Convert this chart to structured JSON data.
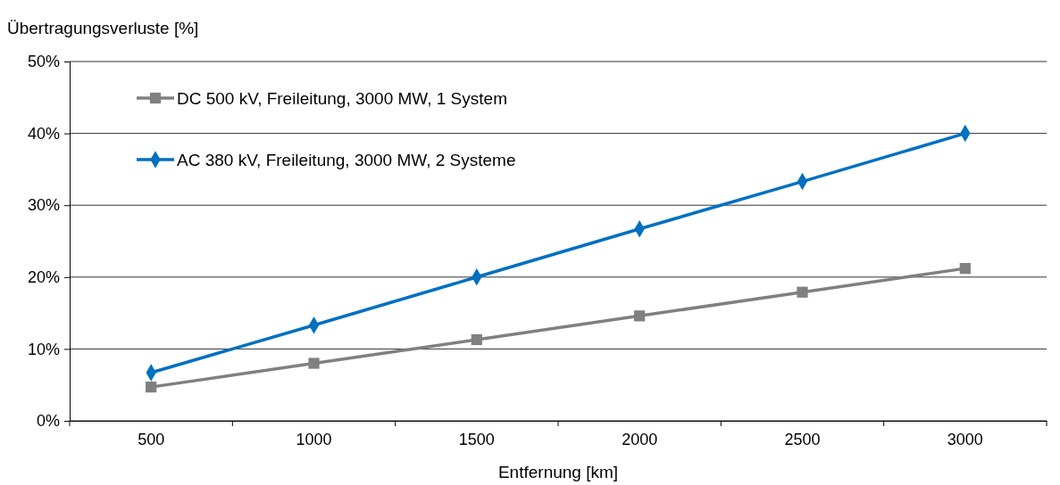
{
  "chart_data": {
    "type": "line",
    "ylabel": "Übertragungsverluste [%]",
    "xlabel": "Entfernung [km]",
    "categories": [
      "500",
      "1000",
      "1500",
      "2000",
      "2500",
      "3000"
    ],
    "series": [
      {
        "name": "DC 500 kV, Freileitung, 3000 MW, 1 System",
        "color": "#808080",
        "marker": "square",
        "values": [
          4.7,
          8.0,
          11.3,
          14.6,
          17.9,
          21.2
        ]
      },
      {
        "name": "AC 380 kV, Freileitung, 3000 MW, 2 Systeme",
        "color": "#0070c0",
        "marker": "diamond",
        "values": [
          6.7,
          13.3,
          20.0,
          26.7,
          33.3,
          40.0
        ]
      }
    ],
    "ylim": [
      0,
      50
    ],
    "yticks": [
      {
        "value": 0,
        "label": "0%"
      },
      {
        "value": 10,
        "label": "10%"
      },
      {
        "value": 20,
        "label": "20%"
      },
      {
        "value": 30,
        "label": "30%"
      },
      {
        "value": 40,
        "label": "40%"
      },
      {
        "value": 50,
        "label": "50%"
      }
    ],
    "grid": "y",
    "legend": "top left",
    "line_style": "solid"
  }
}
